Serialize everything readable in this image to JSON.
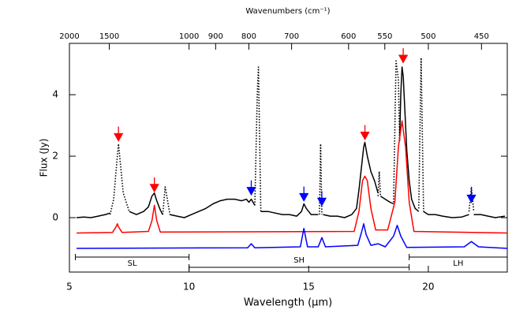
{
  "chart_data": {
    "type": "line",
    "x2label": "Wavenumbers (cm⁻¹)",
    "xlabel": "Wavelength (μm)",
    "ylabel": "Flux (Jy)",
    "xlim": [
      5,
      23.3
    ],
    "xticks": [
      5,
      10,
      15,
      20
    ],
    "ylim": [
      -1.77,
      5.67
    ],
    "yticks": [
      0,
      2,
      4
    ],
    "x2ticks": [
      2000,
      1500,
      1000,
      900,
      800,
      700,
      600,
      550,
      500,
      450
    ],
    "series": [
      {
        "color": "#000000",
        "style": "solid",
        "x": [
          5.3,
          5.6,
          5.9,
          6.2,
          6.5,
          6.7,
          6.75,
          7.5,
          7.8,
          8.1,
          8.3,
          8.45,
          8.55,
          8.65,
          8.8,
          8.9,
          8.95,
          9.2,
          9.5,
          9.8,
          10.1,
          10.4,
          10.7,
          11.0,
          11.3,
          11.6,
          11.9,
          12.2,
          12.4,
          12.5,
          12.6,
          12.75,
          12.8,
          13.0,
          13.3,
          13.6,
          13.9,
          14.2,
          14.5,
          14.7,
          14.8,
          14.9,
          15.1,
          15.4,
          15.5,
          15.6,
          15.9,
          16.2,
          16.5,
          16.8,
          17.0,
          17.1,
          17.2,
          17.3,
          17.35,
          17.45,
          17.6,
          17.75,
          17.9,
          17.95,
          18.0,
          18.2,
          18.4,
          18.55,
          18.6,
          18.8,
          18.85,
          18.9,
          18.95,
          19.0,
          19.1,
          19.2,
          19.3,
          19.45,
          19.6,
          19.7,
          19.8,
          20.0,
          20.3,
          20.6,
          21.0,
          21.4,
          21.7,
          21.8,
          21.9,
          22.2,
          22.5,
          22.8,
          23.2
        ],
        "values": [
          0.0,
          0.02,
          0.0,
          0.05,
          0.1,
          0.15,
          null,
          0.2,
          0.1,
          0.2,
          0.35,
          0.7,
          0.8,
          0.55,
          0.25,
          0.1,
          null,
          0.1,
          0.05,
          0.0,
          0.1,
          0.2,
          0.3,
          0.45,
          0.55,
          0.6,
          0.6,
          0.55,
          0.6,
          0.5,
          0.6,
          0.4,
          null,
          0.2,
          0.2,
          0.15,
          0.1,
          0.1,
          0.05,
          0.2,
          0.45,
          0.3,
          0.1,
          0.1,
          null,
          0.1,
          0.05,
          0.05,
          0.0,
          0.1,
          0.3,
          0.9,
          1.6,
          2.3,
          2.45,
          2.0,
          1.5,
          1.2,
          0.8,
          null,
          0.7,
          0.6,
          0.5,
          0.45,
          null,
          2.5,
          4.0,
          4.9,
          4.6,
          3.8,
          2.2,
          1.2,
          0.6,
          0.3,
          0.2,
          null,
          0.2,
          0.1,
          0.1,
          0.05,
          0.0,
          0.02,
          0.1,
          null,
          0.1,
          0.1,
          0.05,
          0.0,
          0.05
        ]
      },
      {
        "color": "#000000",
        "style": "dotted",
        "x": [
          6.7,
          6.85,
          7.0,
          7.05,
          7.1,
          7.25,
          7.5,
          8.0,
          8.9,
          9.0,
          9.05,
          9.2,
          10,
          12.75,
          12.85,
          12.9,
          13.0,
          14,
          15.45,
          15.5,
          15.55,
          16,
          17.9,
          17.95,
          18.0,
          18.2,
          18.55,
          18.65,
          18.75,
          18.8,
          19.3,
          19.6,
          19.7,
          19.8,
          20.5,
          21.7,
          21.8,
          21.9
        ],
        "values": [
          0.1,
          0.6,
          2.0,
          2.4,
          2.0,
          0.8,
          0.2,
          null,
          0.1,
          1.0,
          0.8,
          0.1,
          null,
          0.4,
          4.0,
          4.9,
          0.2,
          null,
          0.1,
          2.4,
          0.1,
          null,
          0.7,
          1.5,
          0.7,
          null,
          0.5,
          5.1,
          4.5,
          2.5,
          null,
          0.3,
          5.2,
          0.2,
          null,
          0.2,
          1.0,
          0.2
        ]
      },
      {
        "color": "#ff0000",
        "style": "solid",
        "x": [
          5.3,
          6.8,
          6.95,
          7.0,
          7.05,
          7.2,
          8.3,
          8.45,
          8.55,
          8.65,
          8.8,
          16.9,
          17.1,
          17.25,
          17.35,
          17.45,
          17.6,
          17.8,
          18.3,
          18.6,
          18.75,
          18.9,
          19.05,
          19.2,
          19.4,
          23.3
        ],
        "values": [
          -0.5,
          -0.48,
          -0.3,
          -0.2,
          -0.3,
          -0.48,
          -0.45,
          -0.1,
          0.4,
          -0.1,
          -0.47,
          -0.45,
          0.2,
          1.2,
          1.35,
          1.2,
          0.3,
          -0.4,
          -0.4,
          0.5,
          2.3,
          3.15,
          2.3,
          0.5,
          -0.45,
          -0.5
        ]
      },
      {
        "color": "#0000ff",
        "style": "solid",
        "x": [
          5.3,
          12.45,
          12.6,
          12.75,
          14.65,
          14.8,
          14.95,
          15.4,
          15.55,
          15.7,
          17.05,
          17.2,
          17.3,
          17.4,
          17.6,
          17.9,
          18.2,
          18.55,
          18.7,
          18.85,
          19.1,
          21.5,
          21.8,
          22.1,
          23.3
        ],
        "values": [
          -1.0,
          -0.98,
          -0.85,
          -0.98,
          -0.95,
          -0.35,
          -0.95,
          -0.95,
          -0.65,
          -0.95,
          -0.9,
          -0.5,
          -0.2,
          -0.55,
          -0.9,
          -0.85,
          -0.95,
          -0.6,
          -0.25,
          -0.6,
          -0.97,
          -0.95,
          -0.78,
          -0.95,
          -1.0
        ]
      }
    ],
    "arrows": [
      {
        "x": 7.05,
        "y": 2.5,
        "color": "#ff0000"
      },
      {
        "x": 8.55,
        "y": 0.85,
        "color": "#ff0000"
      },
      {
        "x": 17.35,
        "y": 2.55,
        "color": "#ff0000"
      },
      {
        "x": 18.95,
        "y": 5.05,
        "color": "#ff0000"
      },
      {
        "x": 12.6,
        "y": 0.75,
        "color": "#0000ff"
      },
      {
        "x": 14.8,
        "y": 0.55,
        "color": "#0000ff"
      },
      {
        "x": 15.55,
        "y": 0.4,
        "color": "#0000ff"
      },
      {
        "x": 21.8,
        "y": 0.5,
        "color": "#0000ff"
      }
    ],
    "modules": [
      {
        "label": "SL",
        "range": [
          5.25,
          10.0
        ]
      },
      {
        "label": "SH",
        "range": [
          10.0,
          19.2
        ]
      },
      {
        "label": "LH",
        "range": [
          19.2,
          23.3
        ]
      }
    ]
  }
}
